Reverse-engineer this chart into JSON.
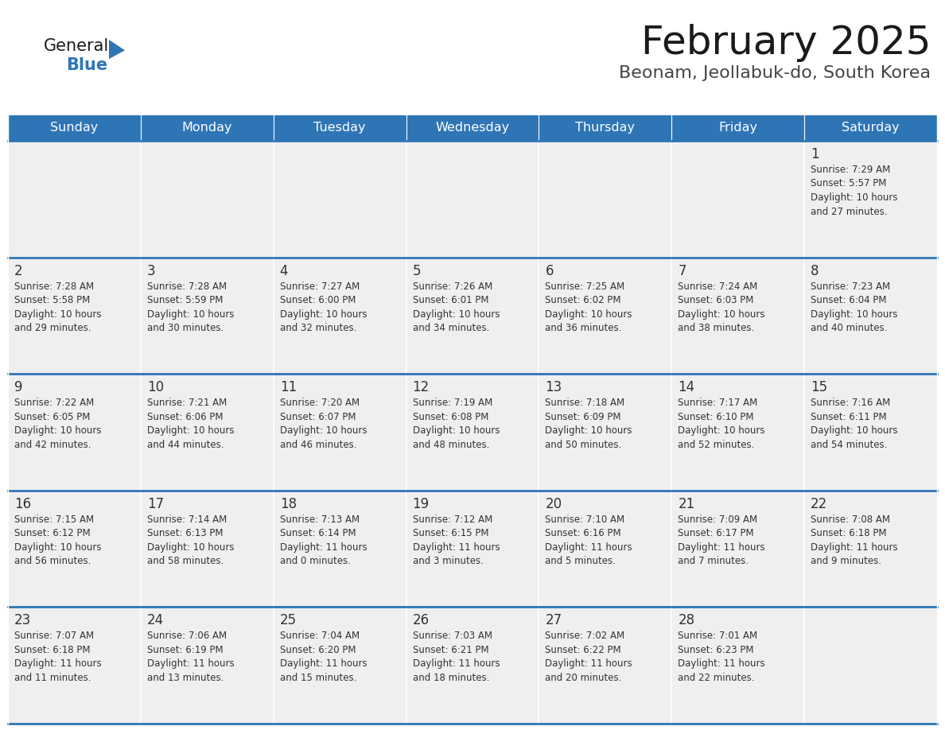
{
  "title": "February 2025",
  "subtitle": "Beonam, Jeollabuk-do, South Korea",
  "header_bg": "#2E75B6",
  "header_text": "#FFFFFF",
  "cell_bg": "#EFEFEF",
  "border_color": "#2E75B6",
  "text_color": "#333333",
  "day_names": [
    "Sunday",
    "Monday",
    "Tuesday",
    "Wednesday",
    "Thursday",
    "Friday",
    "Saturday"
  ],
  "weeks": [
    [
      {
        "day": "",
        "info": ""
      },
      {
        "day": "",
        "info": ""
      },
      {
        "day": "",
        "info": ""
      },
      {
        "day": "",
        "info": ""
      },
      {
        "day": "",
        "info": ""
      },
      {
        "day": "",
        "info": ""
      },
      {
        "day": "1",
        "info": "Sunrise: 7:29 AM\nSunset: 5:57 PM\nDaylight: 10 hours\nand 27 minutes."
      }
    ],
    [
      {
        "day": "2",
        "info": "Sunrise: 7:28 AM\nSunset: 5:58 PM\nDaylight: 10 hours\nand 29 minutes."
      },
      {
        "day": "3",
        "info": "Sunrise: 7:28 AM\nSunset: 5:59 PM\nDaylight: 10 hours\nand 30 minutes."
      },
      {
        "day": "4",
        "info": "Sunrise: 7:27 AM\nSunset: 6:00 PM\nDaylight: 10 hours\nand 32 minutes."
      },
      {
        "day": "5",
        "info": "Sunrise: 7:26 AM\nSunset: 6:01 PM\nDaylight: 10 hours\nand 34 minutes."
      },
      {
        "day": "6",
        "info": "Sunrise: 7:25 AM\nSunset: 6:02 PM\nDaylight: 10 hours\nand 36 minutes."
      },
      {
        "day": "7",
        "info": "Sunrise: 7:24 AM\nSunset: 6:03 PM\nDaylight: 10 hours\nand 38 minutes."
      },
      {
        "day": "8",
        "info": "Sunrise: 7:23 AM\nSunset: 6:04 PM\nDaylight: 10 hours\nand 40 minutes."
      }
    ],
    [
      {
        "day": "9",
        "info": "Sunrise: 7:22 AM\nSunset: 6:05 PM\nDaylight: 10 hours\nand 42 minutes."
      },
      {
        "day": "10",
        "info": "Sunrise: 7:21 AM\nSunset: 6:06 PM\nDaylight: 10 hours\nand 44 minutes."
      },
      {
        "day": "11",
        "info": "Sunrise: 7:20 AM\nSunset: 6:07 PM\nDaylight: 10 hours\nand 46 minutes."
      },
      {
        "day": "12",
        "info": "Sunrise: 7:19 AM\nSunset: 6:08 PM\nDaylight: 10 hours\nand 48 minutes."
      },
      {
        "day": "13",
        "info": "Sunrise: 7:18 AM\nSunset: 6:09 PM\nDaylight: 10 hours\nand 50 minutes."
      },
      {
        "day": "14",
        "info": "Sunrise: 7:17 AM\nSunset: 6:10 PM\nDaylight: 10 hours\nand 52 minutes."
      },
      {
        "day": "15",
        "info": "Sunrise: 7:16 AM\nSunset: 6:11 PM\nDaylight: 10 hours\nand 54 minutes."
      }
    ],
    [
      {
        "day": "16",
        "info": "Sunrise: 7:15 AM\nSunset: 6:12 PM\nDaylight: 10 hours\nand 56 minutes."
      },
      {
        "day": "17",
        "info": "Sunrise: 7:14 AM\nSunset: 6:13 PM\nDaylight: 10 hours\nand 58 minutes."
      },
      {
        "day": "18",
        "info": "Sunrise: 7:13 AM\nSunset: 6:14 PM\nDaylight: 11 hours\nand 0 minutes."
      },
      {
        "day": "19",
        "info": "Sunrise: 7:12 AM\nSunset: 6:15 PM\nDaylight: 11 hours\nand 3 minutes."
      },
      {
        "day": "20",
        "info": "Sunrise: 7:10 AM\nSunset: 6:16 PM\nDaylight: 11 hours\nand 5 minutes."
      },
      {
        "day": "21",
        "info": "Sunrise: 7:09 AM\nSunset: 6:17 PM\nDaylight: 11 hours\nand 7 minutes."
      },
      {
        "day": "22",
        "info": "Sunrise: 7:08 AM\nSunset: 6:18 PM\nDaylight: 11 hours\nand 9 minutes."
      }
    ],
    [
      {
        "day": "23",
        "info": "Sunrise: 7:07 AM\nSunset: 6:18 PM\nDaylight: 11 hours\nand 11 minutes."
      },
      {
        "day": "24",
        "info": "Sunrise: 7:06 AM\nSunset: 6:19 PM\nDaylight: 11 hours\nand 13 minutes."
      },
      {
        "day": "25",
        "info": "Sunrise: 7:04 AM\nSunset: 6:20 PM\nDaylight: 11 hours\nand 15 minutes."
      },
      {
        "day": "26",
        "info": "Sunrise: 7:03 AM\nSunset: 6:21 PM\nDaylight: 11 hours\nand 18 minutes."
      },
      {
        "day": "27",
        "info": "Sunrise: 7:02 AM\nSunset: 6:22 PM\nDaylight: 11 hours\nand 20 minutes."
      },
      {
        "day": "28",
        "info": "Sunrise: 7:01 AM\nSunset: 6:23 PM\nDaylight: 11 hours\nand 22 minutes."
      },
      {
        "day": "",
        "info": ""
      }
    ]
  ],
  "fig_w": 11.88,
  "fig_h": 9.18,
  "dpi": 100
}
